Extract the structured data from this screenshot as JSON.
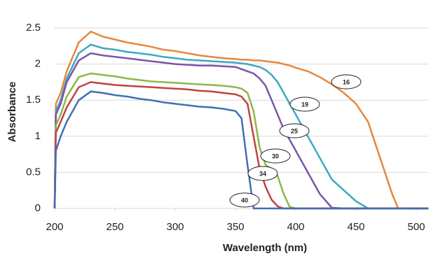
{
  "chart_data": {
    "type": "line",
    "x_label": "Wavelength (nm)",
    "y_label": "Absorbance",
    "x": [
      200,
      201,
      205,
      210,
      220,
      230,
      240,
      250,
      260,
      270,
      280,
      290,
      300,
      310,
      320,
      330,
      340,
      350,
      355,
      360,
      365,
      370,
      375,
      380,
      385,
      390,
      395,
      400,
      410,
      420,
      430,
      440,
      450,
      460,
      470,
      480,
      485,
      490,
      500,
      510
    ],
    "series": [
      {
        "name": "16",
        "color": "#e8873a",
        "values": [
          0,
          1.45,
          1.6,
          1.9,
          2.3,
          2.45,
          2.38,
          2.34,
          2.3,
          2.27,
          2.24,
          2.2,
          2.18,
          2.15,
          2.12,
          2.1,
          2.08,
          2.07,
          2.06,
          2.06,
          2.05,
          2.05,
          2.04,
          2.03,
          2.02,
          2.0,
          1.98,
          1.95,
          1.9,
          1.82,
          1.72,
          1.6,
          1.45,
          1.2,
          0.7,
          0.2,
          0,
          0,
          0,
          0
        ]
      },
      {
        "name": "19",
        "color": "#3ba8c4",
        "values": [
          0,
          1.35,
          1.5,
          1.8,
          2.15,
          2.27,
          2.22,
          2.2,
          2.17,
          2.15,
          2.13,
          2.1,
          2.08,
          2.06,
          2.05,
          2.04,
          2.03,
          2.02,
          2.01,
          2.0,
          1.98,
          1.96,
          1.92,
          1.85,
          1.75,
          1.6,
          1.45,
          1.3,
          1.0,
          0.7,
          0.4,
          0.25,
          0.1,
          0,
          0,
          0,
          0,
          0,
          0,
          0
        ]
      },
      {
        "name": "25",
        "color": "#7b55a8",
        "values": [
          0,
          1.3,
          1.45,
          1.75,
          2.05,
          2.15,
          2.12,
          2.1,
          2.08,
          2.06,
          2.04,
          2.02,
          2.0,
          1.99,
          1.98,
          1.98,
          1.97,
          1.96,
          1.93,
          1.9,
          1.87,
          1.8,
          1.7,
          1.5,
          1.3,
          1.1,
          0.95,
          0.8,
          0.5,
          0.2,
          0.01,
          0,
          0,
          0,
          0,
          0,
          0,
          0,
          0,
          0
        ]
      },
      {
        "name": "30",
        "color": "#8db84a",
        "values": [
          0,
          1.15,
          1.3,
          1.55,
          1.82,
          1.87,
          1.85,
          1.83,
          1.8,
          1.78,
          1.76,
          1.75,
          1.74,
          1.73,
          1.72,
          1.71,
          1.7,
          1.68,
          1.66,
          1.6,
          1.35,
          0.85,
          0.6,
          0.55,
          0.45,
          0.2,
          0.02,
          0,
          0,
          0,
          0,
          0,
          0,
          0,
          0,
          0,
          0,
          0,
          0,
          0
        ]
      },
      {
        "name": "34",
        "color": "#c0433f",
        "values": [
          0,
          1.05,
          1.2,
          1.4,
          1.68,
          1.75,
          1.73,
          1.71,
          1.7,
          1.69,
          1.68,
          1.67,
          1.66,
          1.65,
          1.63,
          1.62,
          1.6,
          1.58,
          1.55,
          1.45,
          1.0,
          0.55,
          0.3,
          0.12,
          0.03,
          0,
          0,
          0,
          0,
          0,
          0,
          0,
          0,
          0,
          0,
          0,
          0,
          0,
          0,
          0
        ]
      },
      {
        "name": "40",
        "color": "#3f6fb5",
        "values": [
          0,
          0.8,
          1.0,
          1.2,
          1.5,
          1.62,
          1.6,
          1.57,
          1.55,
          1.52,
          1.5,
          1.47,
          1.45,
          1.43,
          1.41,
          1.4,
          1.38,
          1.35,
          1.25,
          0.6,
          0,
          0,
          0,
          0,
          0,
          0,
          0,
          0,
          0,
          0,
          0,
          0,
          0,
          0,
          0,
          0,
          0,
          0,
          0,
          0
        ]
      }
    ],
    "xlim": [
      200,
      510
    ],
    "xticks": [
      200,
      250,
      300,
      350,
      400,
      450,
      500
    ],
    "ylim": [
      0,
      2.7
    ],
    "yticks": [
      0,
      {
        "value": 0.5,
        "label": "0.5"
      },
      1,
      {
        "value": 1.5,
        "label": "1.5"
      },
      2,
      {
        "value": 2.5,
        "label": "2.5"
      }
    ],
    "grid": true
  }
}
